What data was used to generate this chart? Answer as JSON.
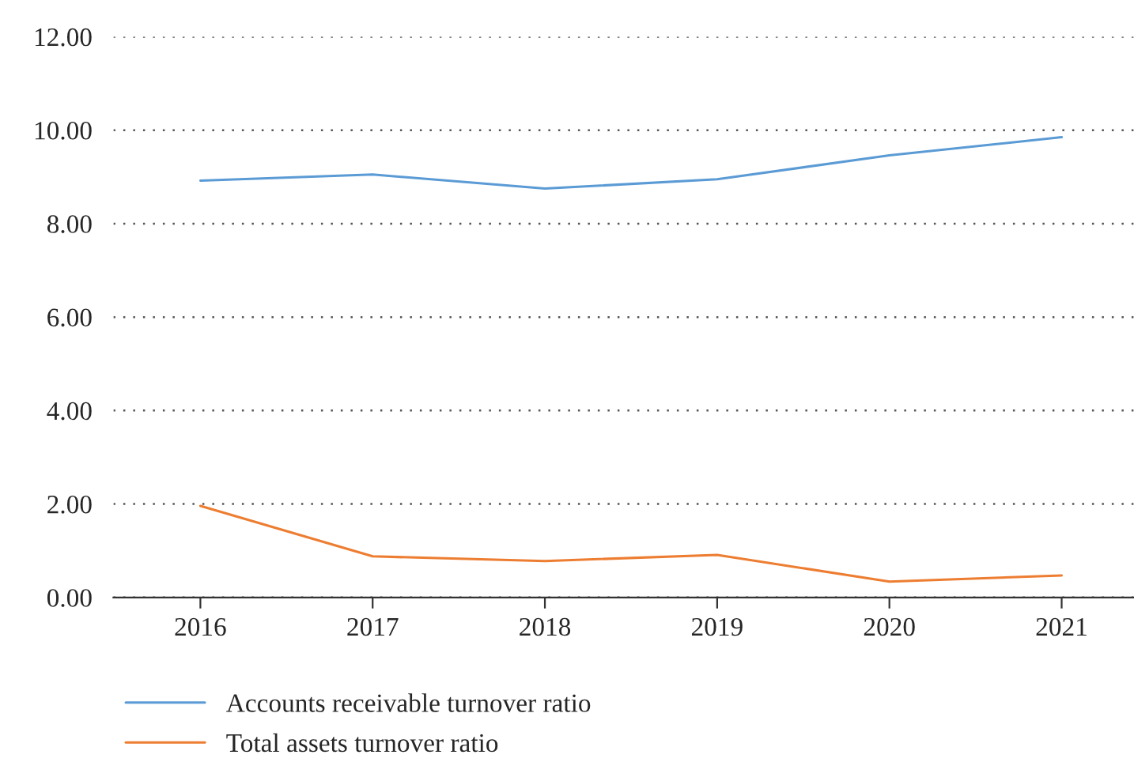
{
  "chart_data": {
    "type": "line",
    "categories": [
      "2016",
      "2017",
      "2018",
      "2019",
      "2020",
      "2021"
    ],
    "series": [
      {
        "name": "Accounts receivable turnover ratio",
        "color": "#5b9bd5",
        "values": [
          8.92,
          9.05,
          8.75,
          8.95,
          9.46,
          9.85
        ]
      },
      {
        "name": "Total assets turnover ratio",
        "color": "#ed7d31",
        "values": [
          1.96,
          0.88,
          0.78,
          0.91,
          0.34,
          0.47
        ]
      }
    ],
    "ylim": [
      0,
      12
    ],
    "yticks": [
      {
        "value": 0,
        "label": "0.00"
      },
      {
        "value": 2,
        "label": "2.00"
      },
      {
        "value": 4,
        "label": "4.00"
      },
      {
        "value": 6,
        "label": "6.00"
      },
      {
        "value": 8,
        "label": "8.00"
      },
      {
        "value": 10,
        "label": "10.00"
      },
      {
        "value": 12,
        "label": "12.00"
      }
    ],
    "grid": "y",
    "legend": "bottom",
    "marker": "none",
    "line_style": "solid"
  }
}
